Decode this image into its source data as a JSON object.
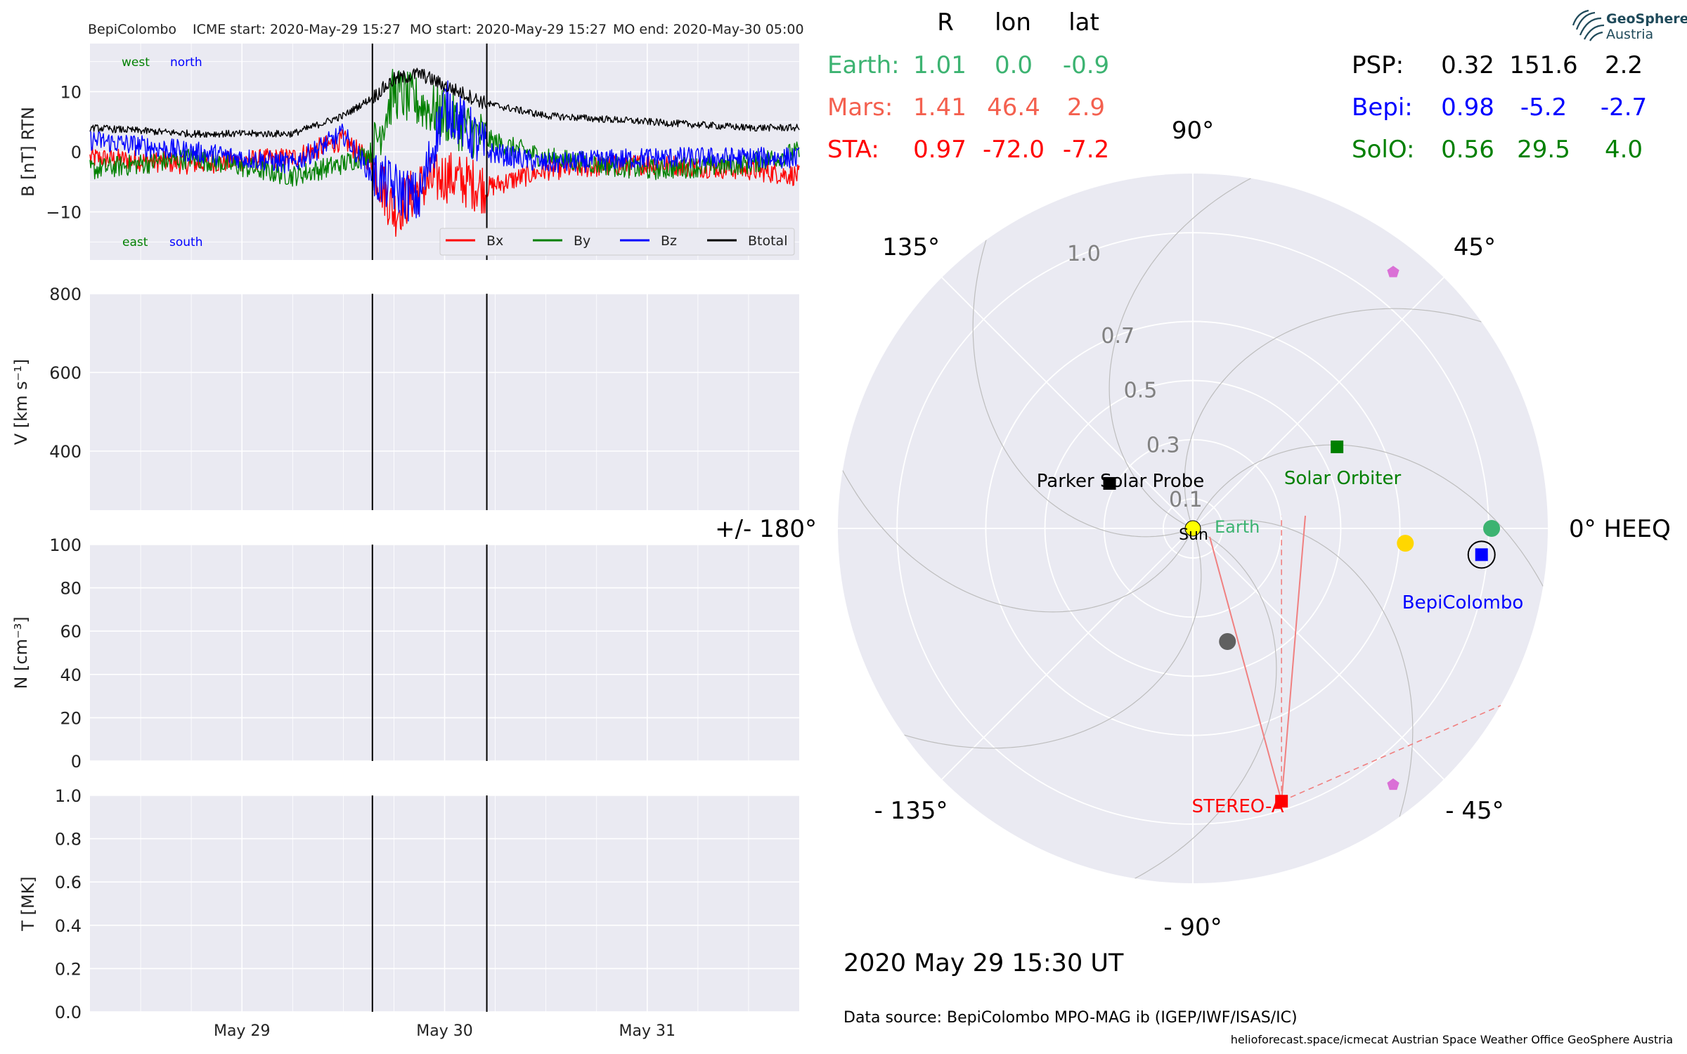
{
  "header": {
    "spacecraft": "BepiColombo",
    "icme_start": "ICME start: 2020-May-29 15:27",
    "mo_start": "MO start: 2020-May-29 15:27",
    "mo_end": "MO end: 2020-May-30 05:00"
  },
  "logo": {
    "line1": "GeoSphere",
    "line2": "Austria"
  },
  "positions_table": {
    "columns": [
      "R",
      "lon",
      "lat"
    ],
    "left": [
      {
        "name": "Earth:",
        "r": "1.01",
        "lon": "0.0",
        "lat": "-0.9",
        "color": "#3cb371"
      },
      {
        "name": "Mars:",
        "r": "1.41",
        "lon": "46.4",
        "lat": "2.9",
        "color": "#f4604f"
      },
      {
        "name": "STA:",
        "r": "0.97",
        "lon": "-72.0",
        "lat": "-7.2",
        "color": "#ff0000"
      }
    ],
    "right": [
      {
        "name": "PSP:",
        "r": "0.32",
        "lon": "151.6",
        "lat": "2.2",
        "color": "#000000"
      },
      {
        "name": "Bepi:",
        "r": "0.98",
        "lon": "-5.2",
        "lat": "-2.7",
        "color": "#0000ff"
      },
      {
        "name": "SolO:",
        "r": "0.56",
        "lon": "29.5",
        "lat": "4.0",
        "color": "#008000"
      }
    ]
  },
  "timestamp": "2020 May 29  15:30 UT",
  "data_source": "Data source: BepiColombo MPO-MAG ib (IGEP/IWF/ISAS/IC)",
  "footer": "helioforecast.space/icmecat   Austrian Space Weather Office   GeoSphere Austria",
  "colors": {
    "panel_bg": "#eaeaf2",
    "grid": "#ffffff",
    "bx": "#ff0000",
    "by": "#008000",
    "bz": "#0000ff",
    "btotal": "#000000"
  },
  "chart_data": [
    {
      "type": "line",
      "ylabel": "B [nT] RTN",
      "ylim": [
        -18,
        18
      ],
      "yticks": [
        "10",
        "0",
        "−10"
      ],
      "ytick_values": [
        10,
        0,
        -10
      ],
      "xticks": [
        "May 29",
        "May 30",
        "May 31"
      ],
      "xtick_values": [
        "2020-05-29 00:00",
        "2020-05-30 00:00",
        "2020-05-31 00:00"
      ],
      "xlim": [
        "2020-05-28 06:00",
        "2020-05-31 18:00"
      ],
      "markers": [
        "2020-05-29 15:27",
        "2020-05-30 05:00"
      ],
      "annotations": {
        "west": "west",
        "north": "north",
        "east": "east",
        "south": "south"
      },
      "legend_position": "lower right",
      "series": [
        {
          "name": "Bx",
          "color": "#ff0000",
          "times": [
            "2020-05-28 06:00",
            "2020-05-28 18:00",
            "2020-05-29 06:00",
            "2020-05-29 12:00",
            "2020-05-29 15:27",
            "2020-05-29 18:00",
            "2020-05-29 21:00",
            "2020-05-30 00:00",
            "2020-05-30 05:00",
            "2020-05-30 12:00",
            "2020-05-31 00:00",
            "2020-05-31 12:00",
            "2020-05-31 18:00"
          ],
          "values": [
            -1,
            -2,
            -1,
            2,
            -2,
            -10,
            -6,
            -4,
            -6,
            -3,
            -2,
            -3,
            -4
          ]
        },
        {
          "name": "By",
          "color": "#008000",
          "times": [
            "2020-05-28 06:00",
            "2020-05-28 18:00",
            "2020-05-29 06:00",
            "2020-05-29 12:00",
            "2020-05-29 15:27",
            "2020-05-29 18:00",
            "2020-05-29 21:00",
            "2020-05-30 00:00",
            "2020-05-30 05:00",
            "2020-05-30 12:00",
            "2020-05-31 00:00",
            "2020-05-31 12:00",
            "2020-05-31 18:00"
          ],
          "values": [
            -3,
            -1,
            -4,
            -2,
            0,
            10,
            8,
            6,
            2,
            -1,
            -3,
            -2,
            0
          ]
        },
        {
          "name": "Bz",
          "color": "#0000ff",
          "times": [
            "2020-05-28 06:00",
            "2020-05-28 18:00",
            "2020-05-29 06:00",
            "2020-05-29 12:00",
            "2020-05-29 15:27",
            "2020-05-29 18:00",
            "2020-05-29 21:00",
            "2020-05-30 00:00",
            "2020-05-30 05:00",
            "2020-05-30 12:00",
            "2020-05-31 00:00",
            "2020-05-31 12:00",
            "2020-05-31 18:00"
          ],
          "values": [
            2,
            0,
            -2,
            3,
            -4,
            -6,
            -8,
            8,
            0,
            -2,
            -1,
            -1,
            -1
          ]
        },
        {
          "name": "Btotal",
          "color": "#000000",
          "times": [
            "2020-05-28 06:00",
            "2020-05-28 18:00",
            "2020-05-29 06:00",
            "2020-05-29 12:00",
            "2020-05-29 15:27",
            "2020-05-29 18:00",
            "2020-05-29 21:00",
            "2020-05-30 00:00",
            "2020-05-30 05:00",
            "2020-05-30 12:00",
            "2020-05-31 00:00",
            "2020-05-31 12:00",
            "2020-05-31 18:00"
          ],
          "values": [
            4,
            3,
            3,
            6,
            9,
            12,
            13,
            11,
            8,
            6,
            5,
            4,
            4
          ]
        }
      ]
    },
    {
      "type": "line",
      "ylabel": "V [km s⁻¹]",
      "ylim": [
        250,
        800
      ],
      "yticks": [
        "800",
        "600",
        "400"
      ],
      "ytick_values": [
        800,
        600,
        400
      ],
      "xticks": [
        "May 29",
        "May 30",
        "May 31"
      ],
      "markers": [
        "2020-05-29 15:27",
        "2020-05-30 05:00"
      ],
      "series": []
    },
    {
      "type": "line",
      "ylabel": "N [cm⁻³]",
      "ylim": [
        0,
        100
      ],
      "yticks": [
        "100",
        "80",
        "60",
        "40",
        "20",
        "0"
      ],
      "ytick_values": [
        100,
        80,
        60,
        40,
        20,
        0
      ],
      "xticks": [
        "May 29",
        "May 30",
        "May 31"
      ],
      "markers": [
        "2020-05-29 15:27",
        "2020-05-30 05:00"
      ],
      "series": []
    },
    {
      "type": "line",
      "ylabel": "T [MK]",
      "ylim": [
        0,
        1
      ],
      "yticks": [
        "1.0",
        "0.8",
        "0.6",
        "0.4",
        "0.2",
        "0.0"
      ],
      "ytick_values": [
        1.0,
        0.8,
        0.6,
        0.4,
        0.2,
        0.0
      ],
      "xticks": [
        "May 29",
        "May 30",
        "May 31"
      ],
      "xtick_labels_shown": [
        "May 29",
        "May 30",
        "May 31"
      ],
      "markers": [
        "2020-05-29 15:27",
        "2020-05-30 05:00"
      ],
      "series": []
    },
    {
      "type": "scatter",
      "projection": "polar",
      "r_max": 1.2,
      "angle_labels": [
        {
          "deg": 0,
          "text": "0° HEEQ"
        },
        {
          "deg": 45,
          "text": "45°"
        },
        {
          "deg": 90,
          "text": "90°"
        },
        {
          "deg": 135,
          "text": "135°"
        },
        {
          "deg": 180,
          "text": "+/- 180°"
        },
        {
          "deg": -135,
          "text": "- 135°"
        },
        {
          "deg": -90,
          "text": "- 90°"
        },
        {
          "deg": -45,
          "text": "- 45°"
        }
      ],
      "radial_labels": [
        "1.0",
        "0.7",
        "0.5",
        "0.3",
        "0.1"
      ],
      "radial_values": [
        1.0,
        0.7,
        0.5,
        0.3,
        0.1
      ],
      "bodies": [
        {
          "name": "Sun",
          "label": "Sun",
          "r": 0.0,
          "lon": 0,
          "color": "#ffff00",
          "marker": "circle"
        },
        {
          "name": "Earth",
          "label": "Earth",
          "r": 1.01,
          "lon": 0.0,
          "color": "#3cb371",
          "marker": "circle"
        },
        {
          "name": "BepiColombo",
          "label": "BepiColombo",
          "r": 0.98,
          "lon": -5.2,
          "color": "#0000ff",
          "marker": "square"
        },
        {
          "name": "STEREO-A",
          "label": "STEREO-A",
          "r": 0.97,
          "lon": -72.0,
          "color": "#ff0000",
          "marker": "square"
        },
        {
          "name": "Parker Solar Probe",
          "label": "Parker Solar Probe",
          "r": 0.32,
          "lon": 151.6,
          "color": "#000000",
          "marker": "square"
        },
        {
          "name": "Solar Orbiter",
          "label": "Solar Orbiter",
          "r": 0.56,
          "lon": 29.5,
          "color": "#008000",
          "marker": "square"
        },
        {
          "name": "Venus",
          "label": "",
          "r": 0.72,
          "lon": -4,
          "color": "#ffd700",
          "marker": "circle"
        },
        {
          "name": "Mercury",
          "label": "",
          "r": 0.4,
          "lon": -73,
          "color": "#606060",
          "marker": "circle"
        },
        {
          "name": "Pentagon-1",
          "label": "",
          "r": 1.1,
          "lon": 52,
          "color": "#da70d6",
          "marker": "pentagon"
        },
        {
          "name": "Pentagon-2",
          "label": "",
          "r": 1.1,
          "lon": -52,
          "color": "#da70d6",
          "marker": "pentagon"
        }
      ],
      "spirals": 8
    }
  ]
}
